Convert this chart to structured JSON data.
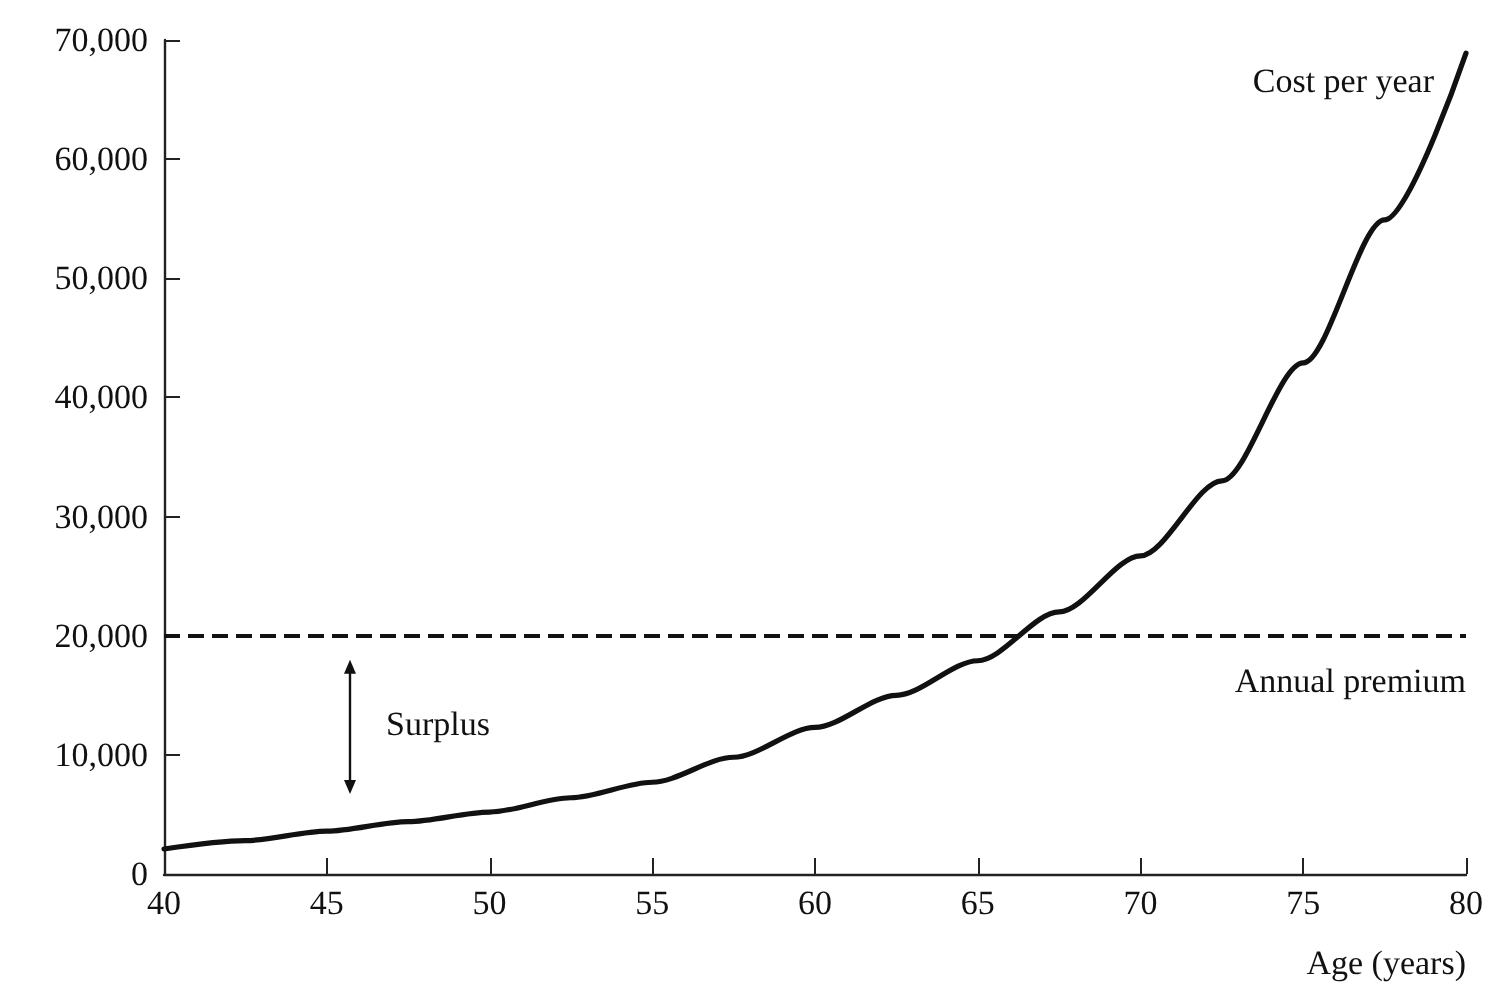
{
  "chart_data": {
    "type": "line",
    "xlabel": "Age (years)",
    "x": [
      40,
      42.5,
      45,
      47.5,
      50,
      52.5,
      55,
      57.5,
      60,
      62.5,
      65,
      67.5,
      70,
      72.5,
      75,
      77.5,
      80
    ],
    "series": [
      {
        "name": "Cost per year",
        "color": "#111111",
        "values": [
          2100,
          2800,
          3600,
          4400,
          5200,
          6400,
          7700,
          9800,
          12300,
          15000,
          17900,
          22000,
          26700,
          33000,
          42900,
          54900,
          68900
        ]
      }
    ],
    "xlim": [
      40,
      80
    ],
    "xticks": [
      40,
      45,
      50,
      55,
      60,
      65,
      70,
      75,
      80
    ],
    "ylim": [
      0,
      70000
    ],
    "yticks": [
      0,
      {
        "value": 10000,
        "label": "10,000"
      },
      {
        "value": 20000,
        "label": "20,000"
      },
      {
        "value": 30000,
        "label": "30,000"
      },
      {
        "value": 40000,
        "label": "40,000"
      },
      {
        "value": 50000,
        "label": "50,000"
      },
      {
        "value": 60000,
        "label": "60,000"
      },
      {
        "value": 70000,
        "label": "70,000"
      }
    ],
    "ref_lines": [
      {
        "axis": "y",
        "value": 20000,
        "label": "Annual premium",
        "line_style": "dashed",
        "color": "#111111"
      }
    ],
    "annotations": [
      "Surplus"
    ],
    "grid": false,
    "legend": false,
    "marker": "none",
    "line_style": "solid"
  }
}
